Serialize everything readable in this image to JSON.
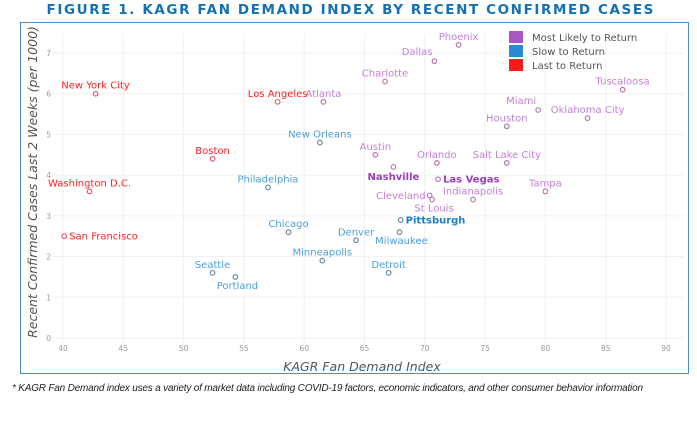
{
  "figure": {
    "title": "FIGURE 1. KAGR FAN DEMAND INDEX BY RECENT CONFIRMED CASES",
    "footnote": "* KAGR Fan Demand index uses a variety of market data including COVID-19 factors, economic indicators, and other consumer behavior information"
  },
  "chart_data": {
    "type": "scatter",
    "title": "FIGURE 1. KAGR FAN DEMAND INDEX BY RECENT CONFIRMED CASES",
    "xlabel": "KAGR Fan Demand Index",
    "ylabel": "Recent Confirmed Cases Last 2 Weeks (per 1000)",
    "xlim": [
      40,
      90
    ],
    "ylim": [
      0,
      7
    ],
    "xticks": [
      "40",
      "45",
      "50",
      "55",
      "60",
      "65",
      "70",
      "75",
      "80",
      "85",
      "90"
    ],
    "yticks": [
      "0",
      "1",
      "2",
      "3",
      "4",
      "5",
      "6",
      "7"
    ],
    "grid": true,
    "legend_position": "top-right",
    "legend": [
      {
        "name": "Most Likely to Return",
        "color": "#a855c8"
      },
      {
        "name": "Slow to Return",
        "color": "#2a8ad4"
      },
      {
        "name": "Last to Return",
        "color": "#ff1a1a"
      }
    ],
    "series": [
      {
        "name": "Most Likely to Return",
        "text_color": "#c57ed8",
        "bold_color": "#9b3cc0",
        "point_color": "#b57aae",
        "points": [
          {
            "label": "Phoenix",
            "x": 72.8,
            "y": 7.2,
            "pos": "top"
          },
          {
            "label": "Dallas",
            "x": 70.8,
            "y": 6.8,
            "pos": "topleft"
          },
          {
            "label": "Charlotte",
            "x": 66.7,
            "y": 6.3,
            "pos": "top"
          },
          {
            "label": "Atlanta",
            "x": 61.6,
            "y": 5.8,
            "pos": "top"
          },
          {
            "label": "Tuscaloosa",
            "x": 86.4,
            "y": 6.1,
            "pos": "top"
          },
          {
            "label": "Miami",
            "x": 79.4,
            "y": 5.6,
            "pos": "topleft"
          },
          {
            "label": "Oklahoma City",
            "x": 83.5,
            "y": 5.4,
            "pos": "top"
          },
          {
            "label": "Houston",
            "x": 76.8,
            "y": 5.2,
            "pos": "top"
          },
          {
            "label": "Austin",
            "x": 65.9,
            "y": 4.5,
            "pos": "top"
          },
          {
            "label": "Nashville",
            "x": 67.4,
            "y": 4.2,
            "pos": "belowleft",
            "bold": true
          },
          {
            "label": "Orlando",
            "x": 71.0,
            "y": 4.3,
            "pos": "top"
          },
          {
            "label": "Salt Lake City",
            "x": 76.8,
            "y": 4.3,
            "pos": "top"
          },
          {
            "label": "Las Vegas",
            "x": 71.1,
            "y": 3.9,
            "pos": "right",
            "bold": true
          },
          {
            "label": "Cleveland",
            "x": 70.4,
            "y": 3.5,
            "pos": "left"
          },
          {
            "label": "St Louis",
            "x": 70.6,
            "y": 3.4,
            "pos": "bottom"
          },
          {
            "label": "Indianapolis",
            "x": 74.0,
            "y": 3.4,
            "pos": "top"
          },
          {
            "label": "Tampa",
            "x": 80.0,
            "y": 3.6,
            "pos": "top"
          }
        ]
      },
      {
        "name": "Slow to Return",
        "text_color": "#4aa0e0",
        "bold_color": "#1a80cc",
        "point_color": "#6a8aa8",
        "points": [
          {
            "label": "New Orleans",
            "x": 61.3,
            "y": 4.8,
            "pos": "top"
          },
          {
            "label": "Philadelphia",
            "x": 57.0,
            "y": 3.7,
            "pos": "top"
          },
          {
            "label": "Pittsburgh",
            "x": 68.0,
            "y": 2.9,
            "pos": "right",
            "bold": true
          },
          {
            "label": "Chicago",
            "x": 58.7,
            "y": 2.6,
            "pos": "top"
          },
          {
            "label": "Denver",
            "x": 64.3,
            "y": 2.4,
            "pos": "top"
          },
          {
            "label": "Milwaukee",
            "x": 67.9,
            "y": 2.6,
            "pos": "bottom"
          },
          {
            "label": "Minneapolis",
            "x": 61.5,
            "y": 1.9,
            "pos": "top"
          },
          {
            "label": "Detroit",
            "x": 67.0,
            "y": 1.6,
            "pos": "top"
          },
          {
            "label": "Seattle",
            "x": 52.4,
            "y": 1.6,
            "pos": "top"
          },
          {
            "label": "Portland",
            "x": 54.3,
            "y": 1.5,
            "pos": "bottom"
          }
        ]
      },
      {
        "name": "Last to Return",
        "text_color": "#ff2222",
        "bold_color": "#ff2222",
        "point_color": "#e85a6a",
        "points": [
          {
            "label": "New York City",
            "x": 42.7,
            "y": 6.0,
            "pos": "top"
          },
          {
            "label": "Los Angeles",
            "x": 57.8,
            "y": 5.8,
            "pos": "top"
          },
          {
            "label": "Boston",
            "x": 52.4,
            "y": 4.4,
            "pos": "top"
          },
          {
            "label": "Washington D.C.",
            "x": 42.2,
            "y": 3.6,
            "pos": "top"
          },
          {
            "label": "San Francisco",
            "x": 40.1,
            "y": 2.5,
            "pos": "right"
          }
        ]
      }
    ]
  }
}
